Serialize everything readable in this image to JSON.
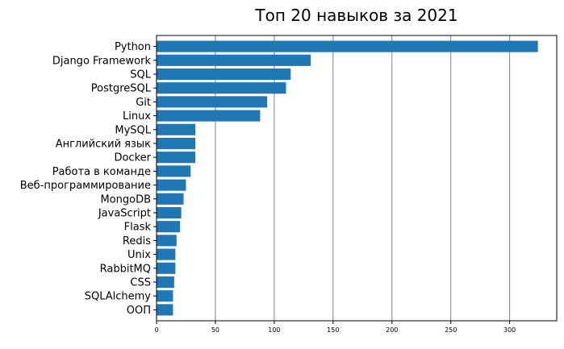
{
  "chart_data": {
    "type": "bar",
    "orientation": "horizontal",
    "title": "Топ 20 навыков за 2021",
    "xlabel": "",
    "ylabel": "",
    "xlim": [
      0,
      340
    ],
    "xticks": [
      0,
      50,
      100,
      150,
      200,
      250,
      300
    ],
    "grid": "vertical",
    "bar_color": "#1f77b4",
    "grid_color": "#808080",
    "categories": [
      "Python",
      "Django Framework",
      "SQL",
      "PostgreSQL",
      "Git",
      "Linux",
      "MySQL",
      "Английский язык",
      "Docker",
      "Работа в команде",
      "Веб-программирование",
      "MongoDB",
      "JavaScript",
      "Flask",
      "Redis",
      "Unix",
      "RabbitMQ",
      "CSS",
      "SQLAlchemy",
      "ООП"
    ],
    "values": [
      324,
      131,
      114,
      110,
      94,
      88,
      33,
      33,
      33,
      29,
      25,
      23,
      21,
      20,
      17,
      16,
      16,
      15,
      14,
      14
    ]
  }
}
